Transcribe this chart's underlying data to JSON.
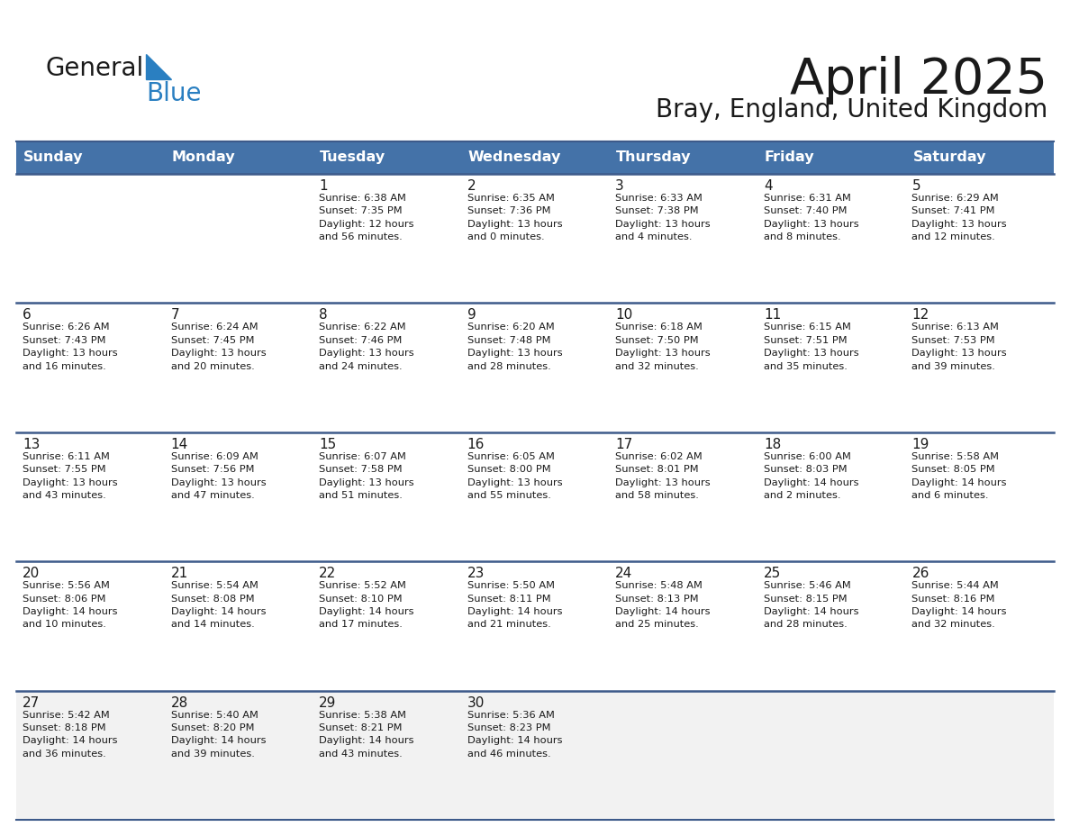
{
  "title": "April 2025",
  "subtitle": "Bray, England, United Kingdom",
  "header_bg": "#4472a8",
  "header_text": "#ffffff",
  "row_bg_white": "#ffffff",
  "row_bg_gray": "#f2f2f2",
  "border_color": "#3d5a8a",
  "day_names": [
    "Sunday",
    "Monday",
    "Tuesday",
    "Wednesday",
    "Thursday",
    "Friday",
    "Saturday"
  ],
  "title_color": "#1a1a1a",
  "subtitle_color": "#1a1a1a",
  "cell_text_color": "#1a1a1a",
  "logo_general_color": "#1a1a1a",
  "logo_blue_color": "#2a7fc1",
  "calendar": [
    [
      {
        "day": "",
        "sunrise": "",
        "sunset": "",
        "daylight": ""
      },
      {
        "day": "",
        "sunrise": "",
        "sunset": "",
        "daylight": ""
      },
      {
        "day": "1",
        "sunrise": "Sunrise: 6:38 AM",
        "sunset": "Sunset: 7:35 PM",
        "daylight": "Daylight: 12 hours\nand 56 minutes."
      },
      {
        "day": "2",
        "sunrise": "Sunrise: 6:35 AM",
        "sunset": "Sunset: 7:36 PM",
        "daylight": "Daylight: 13 hours\nand 0 minutes."
      },
      {
        "day": "3",
        "sunrise": "Sunrise: 6:33 AM",
        "sunset": "Sunset: 7:38 PM",
        "daylight": "Daylight: 13 hours\nand 4 minutes."
      },
      {
        "day": "4",
        "sunrise": "Sunrise: 6:31 AM",
        "sunset": "Sunset: 7:40 PM",
        "daylight": "Daylight: 13 hours\nand 8 minutes."
      },
      {
        "day": "5",
        "sunrise": "Sunrise: 6:29 AM",
        "sunset": "Sunset: 7:41 PM",
        "daylight": "Daylight: 13 hours\nand 12 minutes."
      }
    ],
    [
      {
        "day": "6",
        "sunrise": "Sunrise: 6:26 AM",
        "sunset": "Sunset: 7:43 PM",
        "daylight": "Daylight: 13 hours\nand 16 minutes."
      },
      {
        "day": "7",
        "sunrise": "Sunrise: 6:24 AM",
        "sunset": "Sunset: 7:45 PM",
        "daylight": "Daylight: 13 hours\nand 20 minutes."
      },
      {
        "day": "8",
        "sunrise": "Sunrise: 6:22 AM",
        "sunset": "Sunset: 7:46 PM",
        "daylight": "Daylight: 13 hours\nand 24 minutes."
      },
      {
        "day": "9",
        "sunrise": "Sunrise: 6:20 AM",
        "sunset": "Sunset: 7:48 PM",
        "daylight": "Daylight: 13 hours\nand 28 minutes."
      },
      {
        "day": "10",
        "sunrise": "Sunrise: 6:18 AM",
        "sunset": "Sunset: 7:50 PM",
        "daylight": "Daylight: 13 hours\nand 32 minutes."
      },
      {
        "day": "11",
        "sunrise": "Sunrise: 6:15 AM",
        "sunset": "Sunset: 7:51 PM",
        "daylight": "Daylight: 13 hours\nand 35 minutes."
      },
      {
        "day": "12",
        "sunrise": "Sunrise: 6:13 AM",
        "sunset": "Sunset: 7:53 PM",
        "daylight": "Daylight: 13 hours\nand 39 minutes."
      }
    ],
    [
      {
        "day": "13",
        "sunrise": "Sunrise: 6:11 AM",
        "sunset": "Sunset: 7:55 PM",
        "daylight": "Daylight: 13 hours\nand 43 minutes."
      },
      {
        "day": "14",
        "sunrise": "Sunrise: 6:09 AM",
        "sunset": "Sunset: 7:56 PM",
        "daylight": "Daylight: 13 hours\nand 47 minutes."
      },
      {
        "day": "15",
        "sunrise": "Sunrise: 6:07 AM",
        "sunset": "Sunset: 7:58 PM",
        "daylight": "Daylight: 13 hours\nand 51 minutes."
      },
      {
        "day": "16",
        "sunrise": "Sunrise: 6:05 AM",
        "sunset": "Sunset: 8:00 PM",
        "daylight": "Daylight: 13 hours\nand 55 minutes."
      },
      {
        "day": "17",
        "sunrise": "Sunrise: 6:02 AM",
        "sunset": "Sunset: 8:01 PM",
        "daylight": "Daylight: 13 hours\nand 58 minutes."
      },
      {
        "day": "18",
        "sunrise": "Sunrise: 6:00 AM",
        "sunset": "Sunset: 8:03 PM",
        "daylight": "Daylight: 14 hours\nand 2 minutes."
      },
      {
        "day": "19",
        "sunrise": "Sunrise: 5:58 AM",
        "sunset": "Sunset: 8:05 PM",
        "daylight": "Daylight: 14 hours\nand 6 minutes."
      }
    ],
    [
      {
        "day": "20",
        "sunrise": "Sunrise: 5:56 AM",
        "sunset": "Sunset: 8:06 PM",
        "daylight": "Daylight: 14 hours\nand 10 minutes."
      },
      {
        "day": "21",
        "sunrise": "Sunrise: 5:54 AM",
        "sunset": "Sunset: 8:08 PM",
        "daylight": "Daylight: 14 hours\nand 14 minutes."
      },
      {
        "day": "22",
        "sunrise": "Sunrise: 5:52 AM",
        "sunset": "Sunset: 8:10 PM",
        "daylight": "Daylight: 14 hours\nand 17 minutes."
      },
      {
        "day": "23",
        "sunrise": "Sunrise: 5:50 AM",
        "sunset": "Sunset: 8:11 PM",
        "daylight": "Daylight: 14 hours\nand 21 minutes."
      },
      {
        "day": "24",
        "sunrise": "Sunrise: 5:48 AM",
        "sunset": "Sunset: 8:13 PM",
        "daylight": "Daylight: 14 hours\nand 25 minutes."
      },
      {
        "day": "25",
        "sunrise": "Sunrise: 5:46 AM",
        "sunset": "Sunset: 8:15 PM",
        "daylight": "Daylight: 14 hours\nand 28 minutes."
      },
      {
        "day": "26",
        "sunrise": "Sunrise: 5:44 AM",
        "sunset": "Sunset: 8:16 PM",
        "daylight": "Daylight: 14 hours\nand 32 minutes."
      }
    ],
    [
      {
        "day": "27",
        "sunrise": "Sunrise: 5:42 AM",
        "sunset": "Sunset: 8:18 PM",
        "daylight": "Daylight: 14 hours\nand 36 minutes."
      },
      {
        "day": "28",
        "sunrise": "Sunrise: 5:40 AM",
        "sunset": "Sunset: 8:20 PM",
        "daylight": "Daylight: 14 hours\nand 39 minutes."
      },
      {
        "day": "29",
        "sunrise": "Sunrise: 5:38 AM",
        "sunset": "Sunset: 8:21 PM",
        "daylight": "Daylight: 14 hours\nand 43 minutes."
      },
      {
        "day": "30",
        "sunrise": "Sunrise: 5:36 AM",
        "sunset": "Sunset: 8:23 PM",
        "daylight": "Daylight: 14 hours\nand 46 minutes."
      },
      {
        "day": "",
        "sunrise": "",
        "sunset": "",
        "daylight": ""
      },
      {
        "day": "",
        "sunrise": "",
        "sunset": "",
        "daylight": ""
      },
      {
        "day": "",
        "sunrise": "",
        "sunset": "",
        "daylight": ""
      }
    ]
  ],
  "row_bg_colors": [
    "#ffffff",
    "#ffffff",
    "#ffffff",
    "#ffffff",
    "#f2f2f2"
  ]
}
